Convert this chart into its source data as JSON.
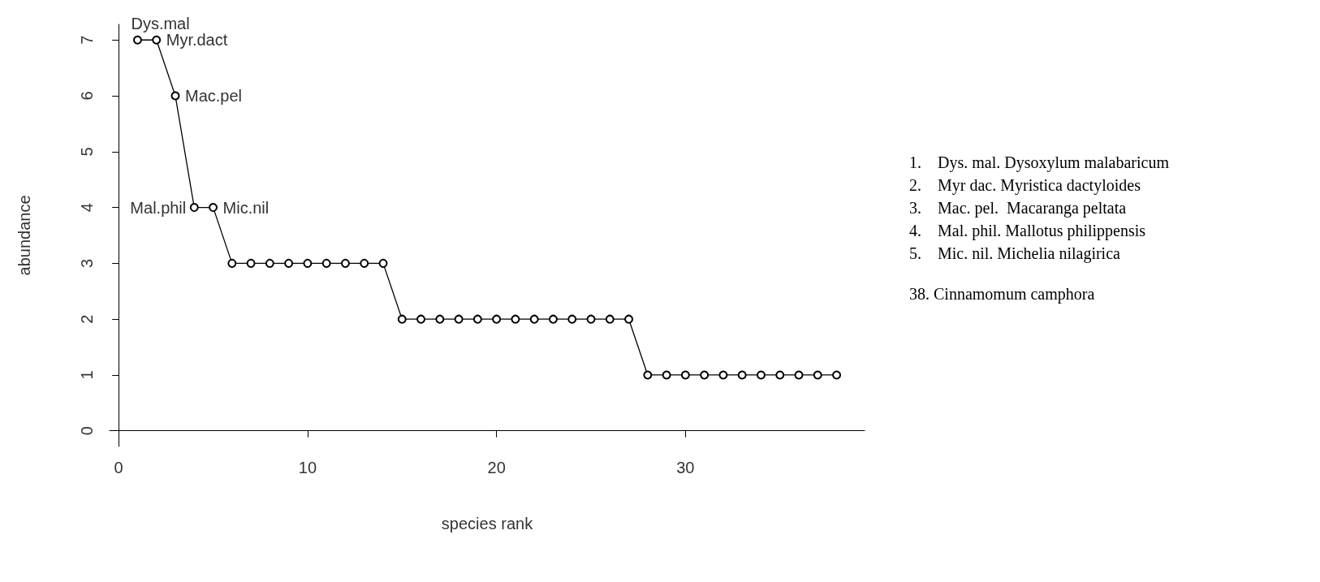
{
  "chart_data": {
    "type": "line",
    "xlabel": "species rank",
    "ylabel": "abundance",
    "x": [
      1,
      2,
      3,
      4,
      5,
      6,
      7,
      8,
      9,
      10,
      11,
      12,
      13,
      14,
      15,
      16,
      17,
      18,
      19,
      20,
      21,
      22,
      23,
      24,
      25,
      26,
      27,
      28,
      29,
      30,
      31,
      32,
      33,
      34,
      35,
      36,
      37,
      38
    ],
    "values": [
      7,
      7,
      6,
      4,
      4,
      3,
      3,
      3,
      3,
      3,
      3,
      3,
      3,
      3,
      2,
      2,
      2,
      2,
      2,
      2,
      2,
      2,
      2,
      2,
      2,
      2,
      2,
      1,
      1,
      1,
      1,
      1,
      1,
      1,
      1,
      1,
      1,
      1
    ],
    "color": "#000000",
    "marker": "circle",
    "line_style": "solid",
    "grid": false,
    "xlim": [
      -0.48,
      39.48
    ],
    "xticks": [
      0,
      10,
      20,
      30
    ],
    "ylim": [
      -0.28,
      7.28
    ],
    "yticks": [
      0,
      1,
      2,
      3,
      4,
      5,
      6,
      7
    ],
    "annotations": [
      {
        "text": "Dys.mal",
        "x": 1,
        "y": 7
      },
      {
        "text": "Myr.dact",
        "x": 2,
        "y": 7
      },
      {
        "text": "Mac.pel",
        "x": 3,
        "y": 6
      },
      {
        "text": "Mal.phil",
        "x": 4,
        "y": 4
      },
      {
        "text": "Mic.nil",
        "x": 5,
        "y": 4
      },
      "1.    Dys. mal. Dysoxylum malabaricum",
      "2.    Myr dac. Myristica dactyloides",
      "3.    Mac. pel.  Macaranga peltata",
      "4.    Mal. phil. Mallotus philippensis",
      "5.    Mic. nil. Michelia nilagirica",
      "38. Cinnamomum camphora"
    ]
  }
}
